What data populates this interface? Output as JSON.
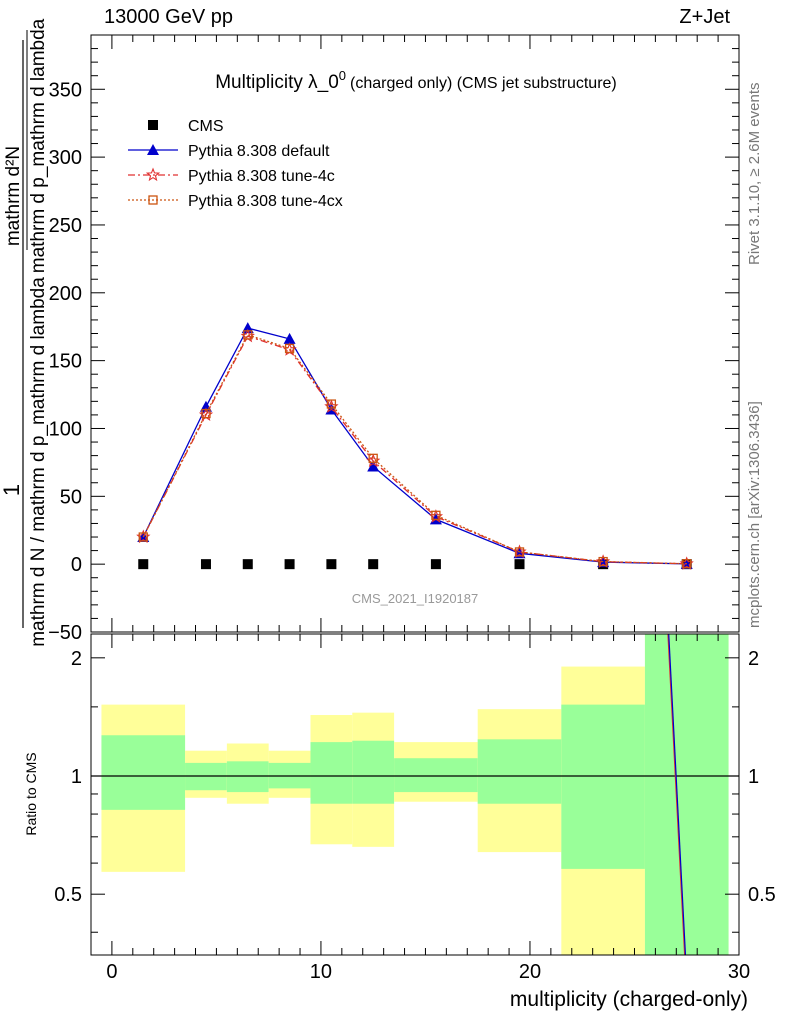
{
  "header": {
    "left": "13000 GeV pp",
    "right": "Z+Jet"
  },
  "side_labels": {
    "top": "Rivet 3.1.10, ≥ 2.6M events",
    "bottom": "mcplots.cern.ch [arXiv:1306.3436]"
  },
  "chart_data": {
    "type": "line",
    "title": "Multiplicity λ_0",
    "title_sup": "0",
    "title_suffix": "(charged only) (CMS jet substructure)",
    "watermark": "CMS_2021_I1920187",
    "xlabel": "multiplicity (charged-only)",
    "ylabel_num": "1",
    "ylabel_den": "mathrm d N / mathrm d p_mathrm d lambda",
    "ylabel_frac_num": "mathrm d²N",
    "ylabel_frac_den": "mathrm d p_mathrm d lambda",
    "ratio_ylabel": "Ratio to CMS",
    "xlim": [
      -1,
      30
    ],
    "ylim": [
      -50,
      390
    ],
    "ratio_ylim": [
      0.35,
      2.3
    ],
    "x_ticks": [
      "0",
      "10",
      "20",
      "30"
    ],
    "y_ticks": [
      "−50",
      "0",
      "50",
      "100",
      "150",
      "200",
      "250",
      "300",
      "350"
    ],
    "ratio_ticks": [
      "0.5",
      "1",
      "2"
    ],
    "x": [
      1.5,
      4.5,
      6.5,
      8.5,
      10.5,
      12.5,
      15.5,
      19.5,
      23.5,
      27.5
    ],
    "series": [
      {
        "name": "CMS",
        "color": "#000000",
        "marker": "square",
        "values": [
          0,
          0,
          0,
          0,
          0,
          0,
          0,
          0,
          0,
          0
        ]
      },
      {
        "name": "Pythia 8.308 default",
        "color": "#0000cc",
        "marker": "triangle",
        "values": [
          20,
          116,
          174,
          166,
          114,
          72,
          33,
          8,
          1.5,
          0.2
        ]
      },
      {
        "name": "Pythia 8.308 tune-4c",
        "color": "#e03030",
        "marker": "star",
        "values": [
          20,
          110,
          168,
          158,
          116,
          76,
          35,
          9,
          1.8,
          0.3
        ]
      },
      {
        "name": "Pythia 8.308 tune-4cx",
        "color": "#cc5511",
        "marker": "open-square",
        "values": [
          20,
          111,
          169,
          159,
          118,
          78,
          36,
          9,
          1.9,
          0.3
        ]
      }
    ],
    "ratio_bands": [
      {
        "x0": -0.5,
        "x1": 3.5,
        "green": [
          0.82,
          1.27
        ],
        "yellow": [
          0.57,
          1.52
        ]
      },
      {
        "x0": 3.5,
        "x1": 5.5,
        "green": [
          0.92,
          1.08
        ],
        "yellow": [
          0.88,
          1.16
        ]
      },
      {
        "x0": 5.5,
        "x1": 7.5,
        "green": [
          0.91,
          1.09
        ],
        "yellow": [
          0.85,
          1.21
        ]
      },
      {
        "x0": 7.5,
        "x1": 9.5,
        "green": [
          0.93,
          1.08
        ],
        "yellow": [
          0.88,
          1.16
        ]
      },
      {
        "x0": 9.5,
        "x1": 11.5,
        "green": [
          0.85,
          1.22
        ],
        "yellow": [
          0.67,
          1.43
        ]
      },
      {
        "x0": 11.5,
        "x1": 13.5,
        "green": [
          0.85,
          1.23
        ],
        "yellow": [
          0.66,
          1.45
        ]
      },
      {
        "x0": 13.5,
        "x1": 17.5,
        "green": [
          0.91,
          1.11
        ],
        "yellow": [
          0.86,
          1.22
        ]
      },
      {
        "x0": 17.5,
        "x1": 21.5,
        "green": [
          0.85,
          1.24
        ],
        "yellow": [
          0.64,
          1.48
        ]
      },
      {
        "x0": 21.5,
        "x1": 25.5,
        "green": [
          0.58,
          1.52
        ],
        "yellow": [
          0.35,
          1.9
        ]
      },
      {
        "x0": 25.5,
        "x1": 29.5,
        "green": [
          0.35,
          2.3
        ],
        "yellow": [
          0.35,
          2.3
        ]
      }
    ],
    "ratio_line": {
      "x": [
        26.6,
        27.4
      ],
      "y": [
        2.3,
        0.35
      ]
    }
  }
}
